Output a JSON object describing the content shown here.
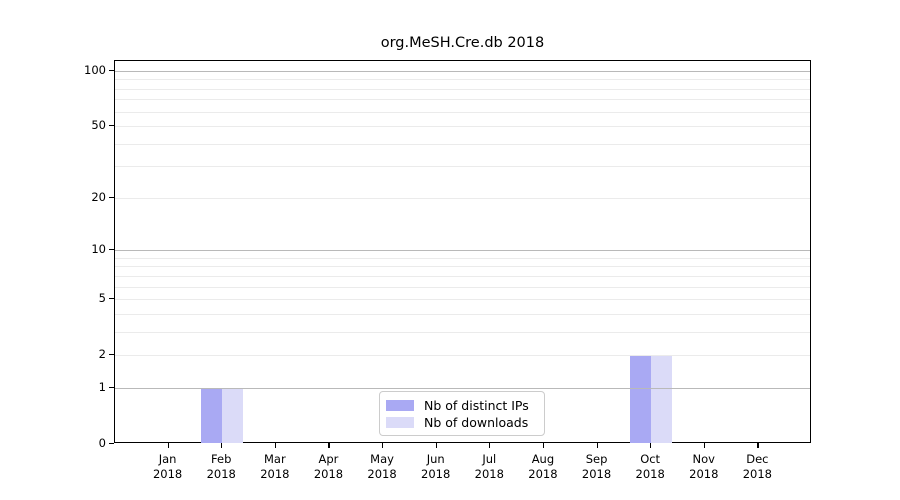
{
  "chart_data": {
    "type": "bar",
    "title": "org.MeSH.Cre.db 2018",
    "categories": [
      "Jan",
      "Feb",
      "Mar",
      "Apr",
      "May",
      "Jun",
      "Jul",
      "Aug",
      "Sep",
      "Oct",
      "Nov",
      "Dec"
    ],
    "year_label": "2018",
    "series": [
      {
        "name": "Nb of distinct IPs",
        "color": "#a9a9f3",
        "values": [
          0,
          1,
          0,
          0,
          0,
          0,
          0,
          0,
          0,
          2,
          0,
          0
        ]
      },
      {
        "name": "Nb of downloads",
        "color": "#dbdbf8",
        "values": [
          0,
          1,
          0,
          0,
          0,
          0,
          0,
          0,
          0,
          2,
          0,
          0
        ]
      }
    ],
    "xlabel": "",
    "ylabel": "",
    "yscale": "log1p",
    "ylim": [
      0,
      113
    ],
    "y_ticks": [
      0,
      1,
      2,
      5,
      10,
      20,
      50,
      100
    ],
    "y_major_gridlines": [
      1,
      10,
      100
    ],
    "y_minor_gridlines": [
      2,
      3,
      4,
      5,
      6,
      7,
      8,
      9,
      20,
      30,
      40,
      50,
      60,
      70,
      80,
      90
    ],
    "grid": true,
    "legend_position": "lower center"
  },
  "colors": {
    "spine": "#000000",
    "major_gridline": "#b9b9b9",
    "minor_gridline": "#ebebeb",
    "background": "#ffffff"
  }
}
